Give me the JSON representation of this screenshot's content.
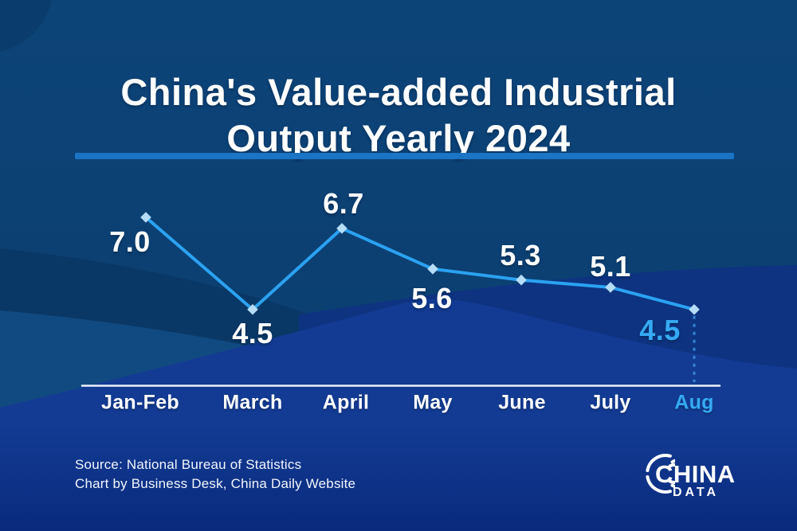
{
  "header": {
    "title_line1": "China's Value-added Industrial",
    "title_line2": "Output Yearly 2024"
  },
  "chart_data": {
    "type": "line",
    "title": "China's Value-added Industrial Output Yearly 2024",
    "categories": [
      "Jan-Feb",
      "March",
      "April",
      "May",
      "June",
      "July",
      "Aug"
    ],
    "values": [
      7.0,
      4.5,
      6.7,
      5.6,
      5.3,
      5.1,
      4.5
    ],
    "point_labels": [
      "7.0",
      "4.5",
      "6.7",
      "5.6",
      "5.3",
      "5.1",
      "4.5"
    ],
    "highlight_index": 6,
    "ylim": [
      4.0,
      7.5
    ],
    "grid": false,
    "legend": false,
    "marker_shape": "diamond",
    "colors": {
      "line": "#2BA2F2",
      "marker_fill": "#B5DDF8",
      "label_text": "#FFFFFF",
      "highlight_text": "#35AAF2",
      "axis_line": "#ECF2FA",
      "dashed_guide": "#3585D3"
    }
  },
  "footer": {
    "source_line1": "Source: National Bureau of Statistics",
    "source_line2": "Chart by Business Desk, China Daily Website",
    "logo_line1": "CHINA",
    "logo_line2": "DATA"
  },
  "theme": {
    "divider_color": "#1B74C4",
    "background_top": "#0D4478",
    "background_bottom": "#0A3C6D",
    "wave_navy": "#0A3866",
    "wave_steel": "#114A80",
    "wave_royal_back": "#0D3381",
    "wave_royal_front_top": "#133B93",
    "wave_royal_front_bottom": "#092A7D"
  }
}
